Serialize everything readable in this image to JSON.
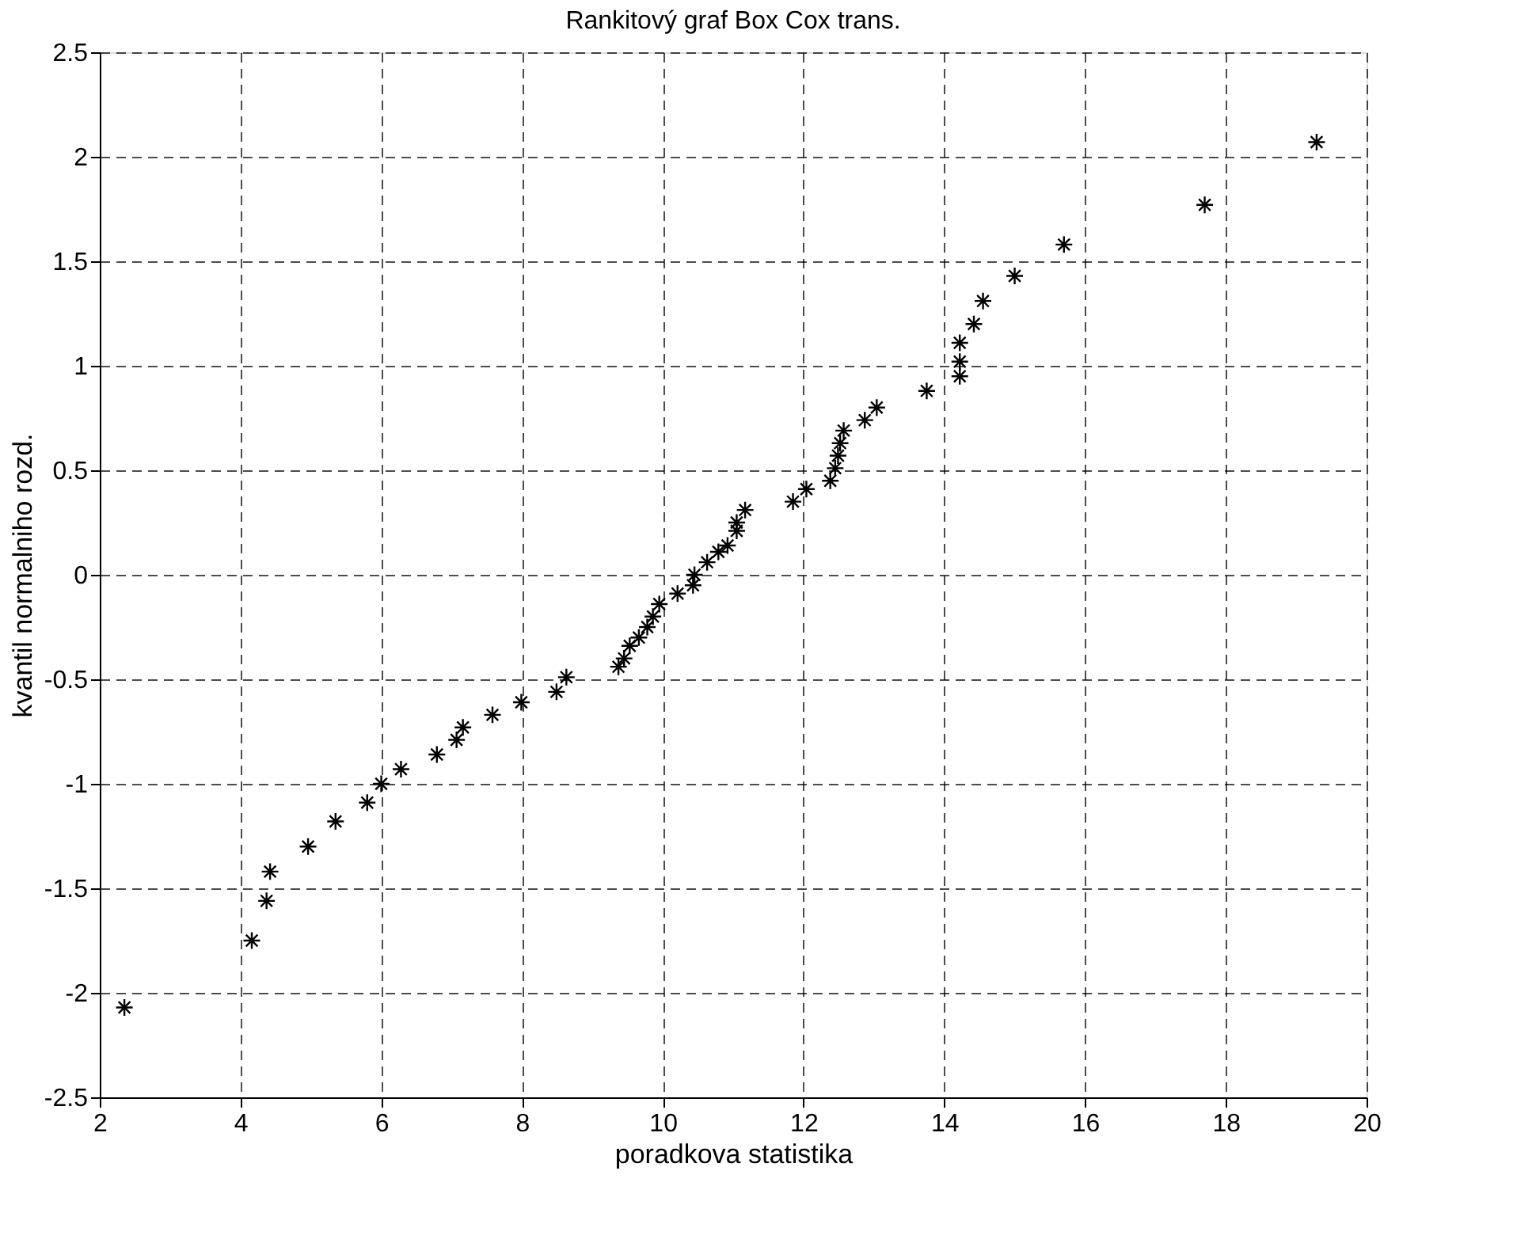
{
  "chart_data": {
    "type": "scatter",
    "title": "Rankitový graf  Box Cox trans.",
    "xlabel": "poradkova statistika",
    "ylabel": "kvantil normalniho rozd.",
    "x": [
      2.35,
      4.16,
      4.37,
      4.42,
      4.96,
      5.35,
      5.8,
      6.0,
      6.28,
      6.79,
      7.07,
      7.16,
      7.58,
      7.99,
      8.49,
      8.63,
      9.37,
      9.45,
      9.53,
      9.66,
      9.78,
      9.86,
      9.95,
      10.21,
      10.43,
      10.45,
      10.63,
      10.79,
      10.92,
      11.05,
      11.05,
      11.17,
      11.85,
      12.04,
      12.38,
      12.45,
      12.49,
      12.52,
      12.57,
      12.87,
      13.04,
      13.75,
      14.22,
      14.22,
      14.22,
      14.42,
      14.55,
      15.0,
      15.7,
      17.7,
      19.29
    ],
    "series": [
      {
        "color": "#000000",
        "values": [
          -2.07,
          -1.75,
          -1.56,
          -1.42,
          -1.3,
          -1.18,
          -1.09,
          -1.0,
          -0.93,
          -0.86,
          -0.79,
          -0.73,
          -0.67,
          -0.61,
          -0.56,
          -0.49,
          -0.44,
          -0.4,
          -0.34,
          -0.3,
          -0.25,
          -0.2,
          -0.14,
          -0.09,
          -0.05,
          0.0,
          0.06,
          0.11,
          0.14,
          0.21,
          0.25,
          0.31,
          0.35,
          0.41,
          0.45,
          0.51,
          0.57,
          0.63,
          0.69,
          0.74,
          0.8,
          0.88,
          0.95,
          1.02,
          1.11,
          1.2,
          1.31,
          1.43,
          1.58,
          1.77,
          2.07
        ]
      }
    ],
    "xlim": [
      2,
      20
    ],
    "xticks": [
      2,
      4,
      6,
      8,
      10,
      12,
      14,
      16,
      18,
      20
    ],
    "ylim": [
      -2.5,
      2.5
    ],
    "yticks": [
      -2.5,
      -2,
      -1.5,
      -1,
      -0.5,
      0,
      0.5,
      1,
      1.5,
      2,
      2.5
    ],
    "grid": true,
    "marker": "cross"
  }
}
